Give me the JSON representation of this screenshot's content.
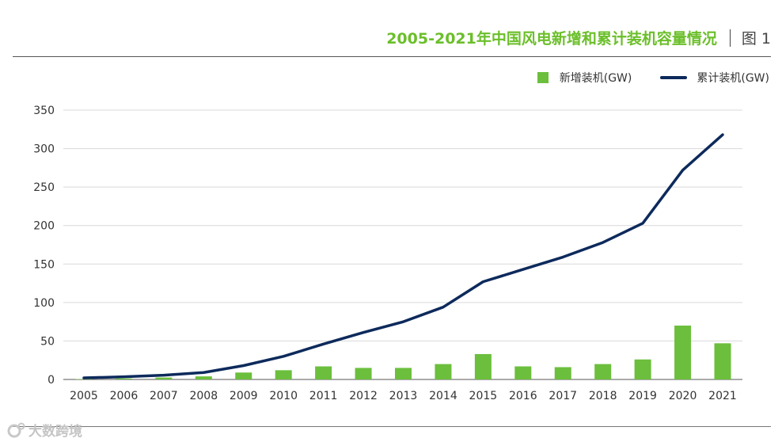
{
  "header": {
    "title": "2005-2021年中国风电新增和累计装机容量情况",
    "figure_label": "图 1"
  },
  "watermark": {
    "text": "大数跨境"
  },
  "colors": {
    "bar": "#6bbf3c",
    "line": "#0d2a5c",
    "title": "#6bbf2a",
    "grid": "#d9d9d9"
  },
  "chart_data": {
    "type": "bar+line",
    "title": "2005-2021年中国风电新增和累计装机容量情况",
    "categories": [
      "2005",
      "2006",
      "2007",
      "2008",
      "2009",
      "2010",
      "2011",
      "2012",
      "2013",
      "2014",
      "2015",
      "2016",
      "2017",
      "2018",
      "2019",
      "2020",
      "2021"
    ],
    "series": [
      {
        "name": "新增装机(GW)",
        "type": "bar",
        "values": [
          0.5,
          1.3,
          2.5,
          4,
          9,
          12,
          17,
          15,
          15,
          20,
          33,
          17,
          16,
          20,
          26,
          70,
          47
        ]
      },
      {
        "name": "累计装机(GW)",
        "type": "line",
        "values": [
          2,
          3.5,
          5.5,
          9,
          18,
          30,
          46,
          61,
          75,
          94,
          127,
          143,
          159,
          178,
          203,
          272,
          318
        ]
      }
    ],
    "ylim": [
      0,
      350
    ],
    "yticks": [
      0,
      50,
      100,
      150,
      200,
      250,
      300,
      350
    ],
    "xlabel": "",
    "ylabel": "",
    "grid": true,
    "legend": "top-right"
  }
}
